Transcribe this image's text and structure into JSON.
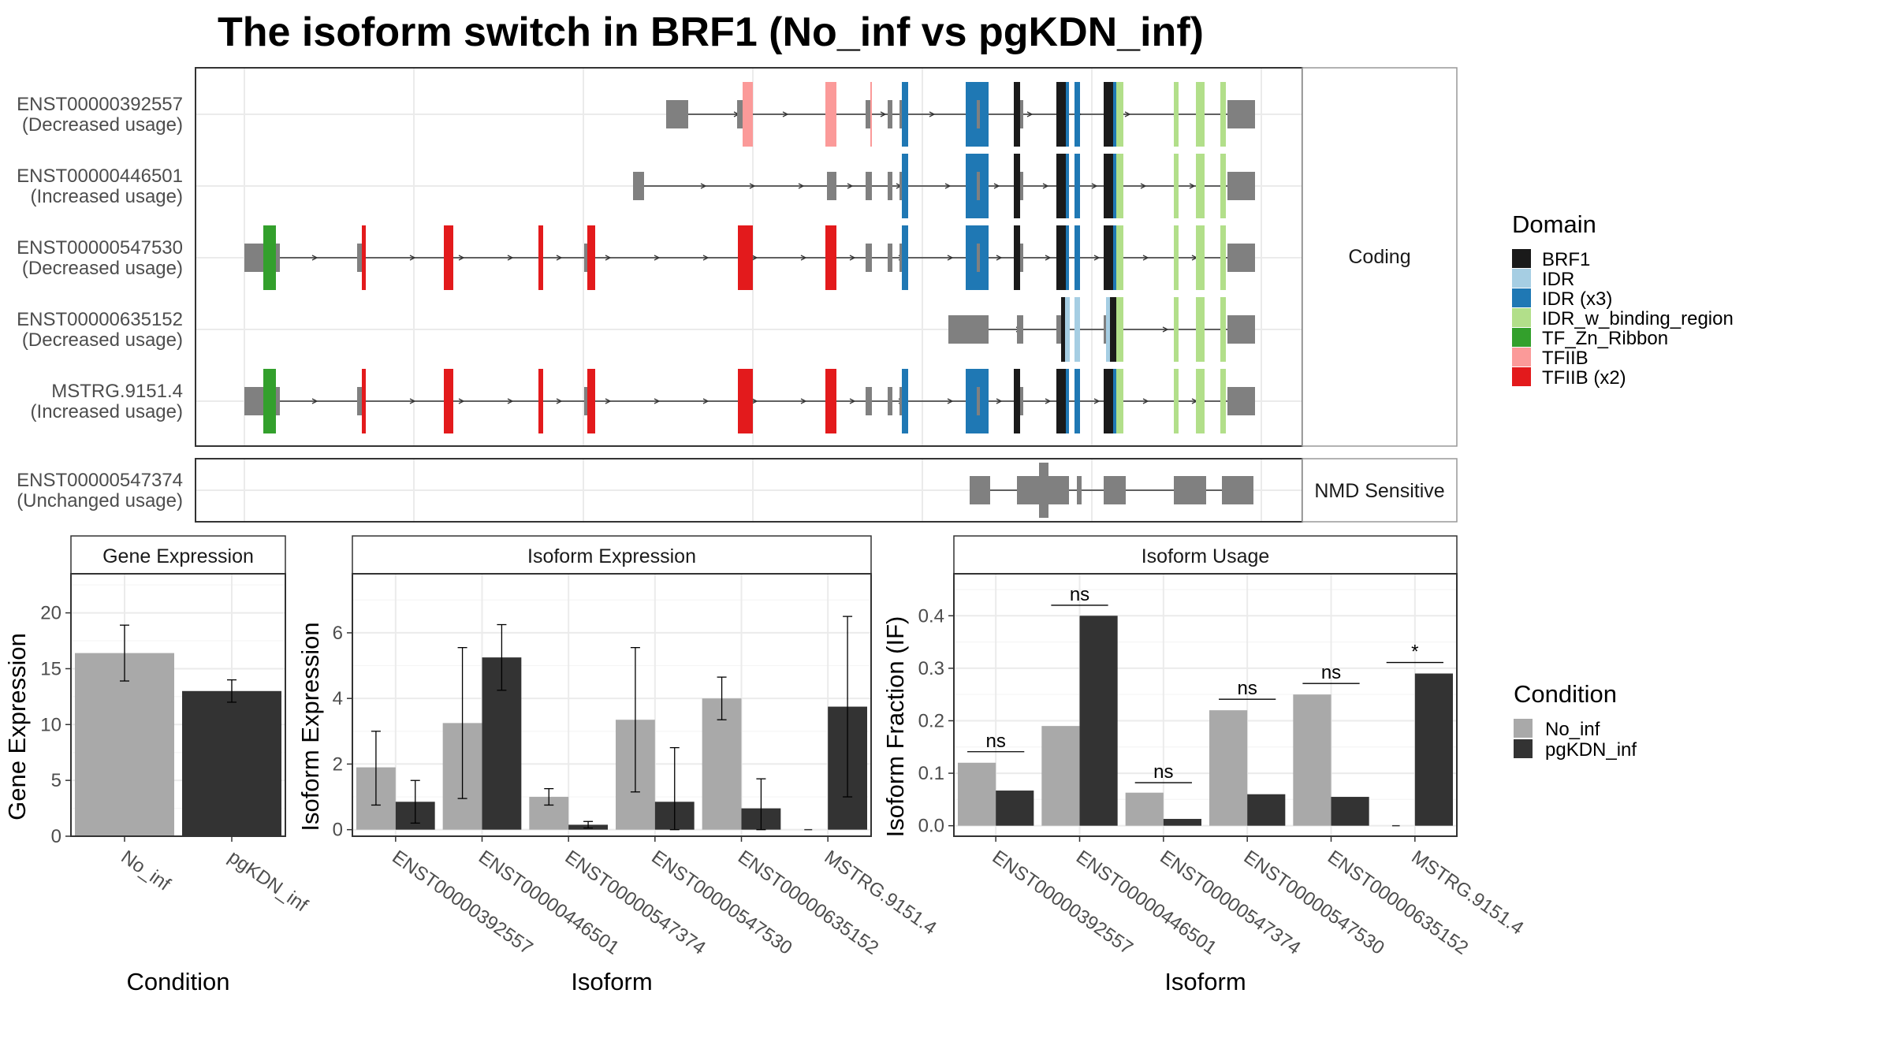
{
  "title": "The isoform switch in BRF1 (No_inf vs pgKDN_inf)",
  "colors": {
    "intron": "#333333",
    "utr": "#808080",
    "BRF1": "#1a1a1a",
    "IDR": "#a6cee3",
    "IDR_x3": "#1f78b4",
    "IDR_w_binding_region": "#b2df8a",
    "TF_Zn_Ribbon": "#33a02c",
    "TFIIB": "#fb9a99",
    "TFIIB_x2": "#e31a1c",
    "No_inf": "#a9a9a9",
    "pgKDN_inf": "#333333"
  },
  "transcripts": {
    "coding_strip": "Coding",
    "nmd_strip": "NMD Sensitive",
    "rows": [
      {
        "id": "ENST00000392557",
        "usage": "(Decreased usage)"
      },
      {
        "id": "ENST00000446501",
        "usage": "(Increased usage)"
      },
      {
        "id": "ENST00000547530",
        "usage": "(Decreased usage)"
      },
      {
        "id": "ENST00000635152",
        "usage": "(Decreased usage)"
      },
      {
        "id": "MSTRG.9151.4",
        "usage": "(Increased usage)"
      }
    ],
    "nmd_row": {
      "id": "ENST00000547374",
      "usage": "(Unchanged usage)"
    }
  },
  "legend_domain": {
    "title": "Domain",
    "items": [
      {
        "label": "BRF1",
        "color": "#1a1a1a"
      },
      {
        "label": "IDR",
        "color": "#a6cee3"
      },
      {
        "label": "IDR (x3)",
        "color": "#1f78b4"
      },
      {
        "label": "IDR_w_binding_region",
        "color": "#b2df8a"
      },
      {
        "label": "TF_Zn_Ribbon",
        "color": "#33a02c"
      },
      {
        "label": "TFIIB",
        "color": "#fb9a99"
      },
      {
        "label": "TFIIB (x2)",
        "color": "#e31a1c"
      }
    ]
  },
  "legend_condition": {
    "title": "Condition",
    "items": [
      {
        "label": "No_inf",
        "color": "#a9a9a9"
      },
      {
        "label": "pgKDN_inf",
        "color": "#333333"
      }
    ]
  },
  "chart_data": [
    {
      "type": "bar",
      "title": "Gene Expression",
      "xlabel": "Condition",
      "ylabel": "Gene Expression",
      "ylim": [
        0,
        23.5
      ],
      "yticks": [
        0,
        5,
        10,
        15,
        20
      ],
      "categories": [
        "No_inf",
        "pgKDN_inf"
      ],
      "values": [
        16.4,
        13.0
      ],
      "error_low": [
        13.9,
        12.0
      ],
      "error_high": [
        18.9,
        14.0
      ]
    },
    {
      "type": "bar",
      "title": "Isoform Expression",
      "xlabel": "Isoform",
      "ylabel": "Isoform Expression",
      "ylim": [
        -0.2,
        7.8
      ],
      "yticks": [
        0,
        2,
        4,
        6
      ],
      "categories": [
        "ENST00000392557",
        "ENST00000446501",
        "ENST00000547374",
        "ENST00000547530",
        "ENST00000635152",
        "MSTRG.9151.4"
      ],
      "series": [
        {
          "name": "No_inf",
          "values": [
            1.9,
            3.25,
            1.0,
            3.35,
            4.0,
            0.0
          ],
          "error_low": [
            0.75,
            0.95,
            0.75,
            1.15,
            3.35,
            0.0
          ],
          "error_high": [
            3.0,
            5.55,
            1.25,
            5.55,
            4.65,
            0.0
          ]
        },
        {
          "name": "pgKDN_inf",
          "values": [
            0.85,
            5.25,
            0.15,
            0.85,
            0.65,
            3.75
          ],
          "error_low": [
            0.2,
            4.25,
            0.05,
            0.0,
            0.0,
            1.0
          ],
          "error_high": [
            1.5,
            6.25,
            0.25,
            2.5,
            1.55,
            6.5
          ]
        }
      ]
    },
    {
      "type": "bar",
      "title": "Isoform Usage",
      "xlabel": "Isoform",
      "ylabel": "Isoform Fraction (IF)",
      "ylim": [
        -0.02,
        0.48
      ],
      "yticks": [
        0.0,
        0.1,
        0.2,
        0.3,
        0.4
      ],
      "categories": [
        "ENST00000392557",
        "ENST00000446501",
        "ENST00000547374",
        "ENST00000547530",
        "ENST00000635152",
        "MSTRG.9151.4"
      ],
      "series": [
        {
          "name": "No_inf",
          "values": [
            0.12,
            0.19,
            0.063,
            0.22,
            0.25,
            0.0
          ]
        },
        {
          "name": "pgKDN_inf",
          "values": [
            0.067,
            0.4,
            0.013,
            0.06,
            0.055,
            0.29
          ]
        }
      ],
      "significance": [
        "ns",
        "ns",
        "ns",
        "ns",
        "ns",
        "*"
      ],
      "significance_y": [
        0.141,
        0.42,
        0.082,
        0.241,
        0.271,
        0.311
      ]
    }
  ]
}
